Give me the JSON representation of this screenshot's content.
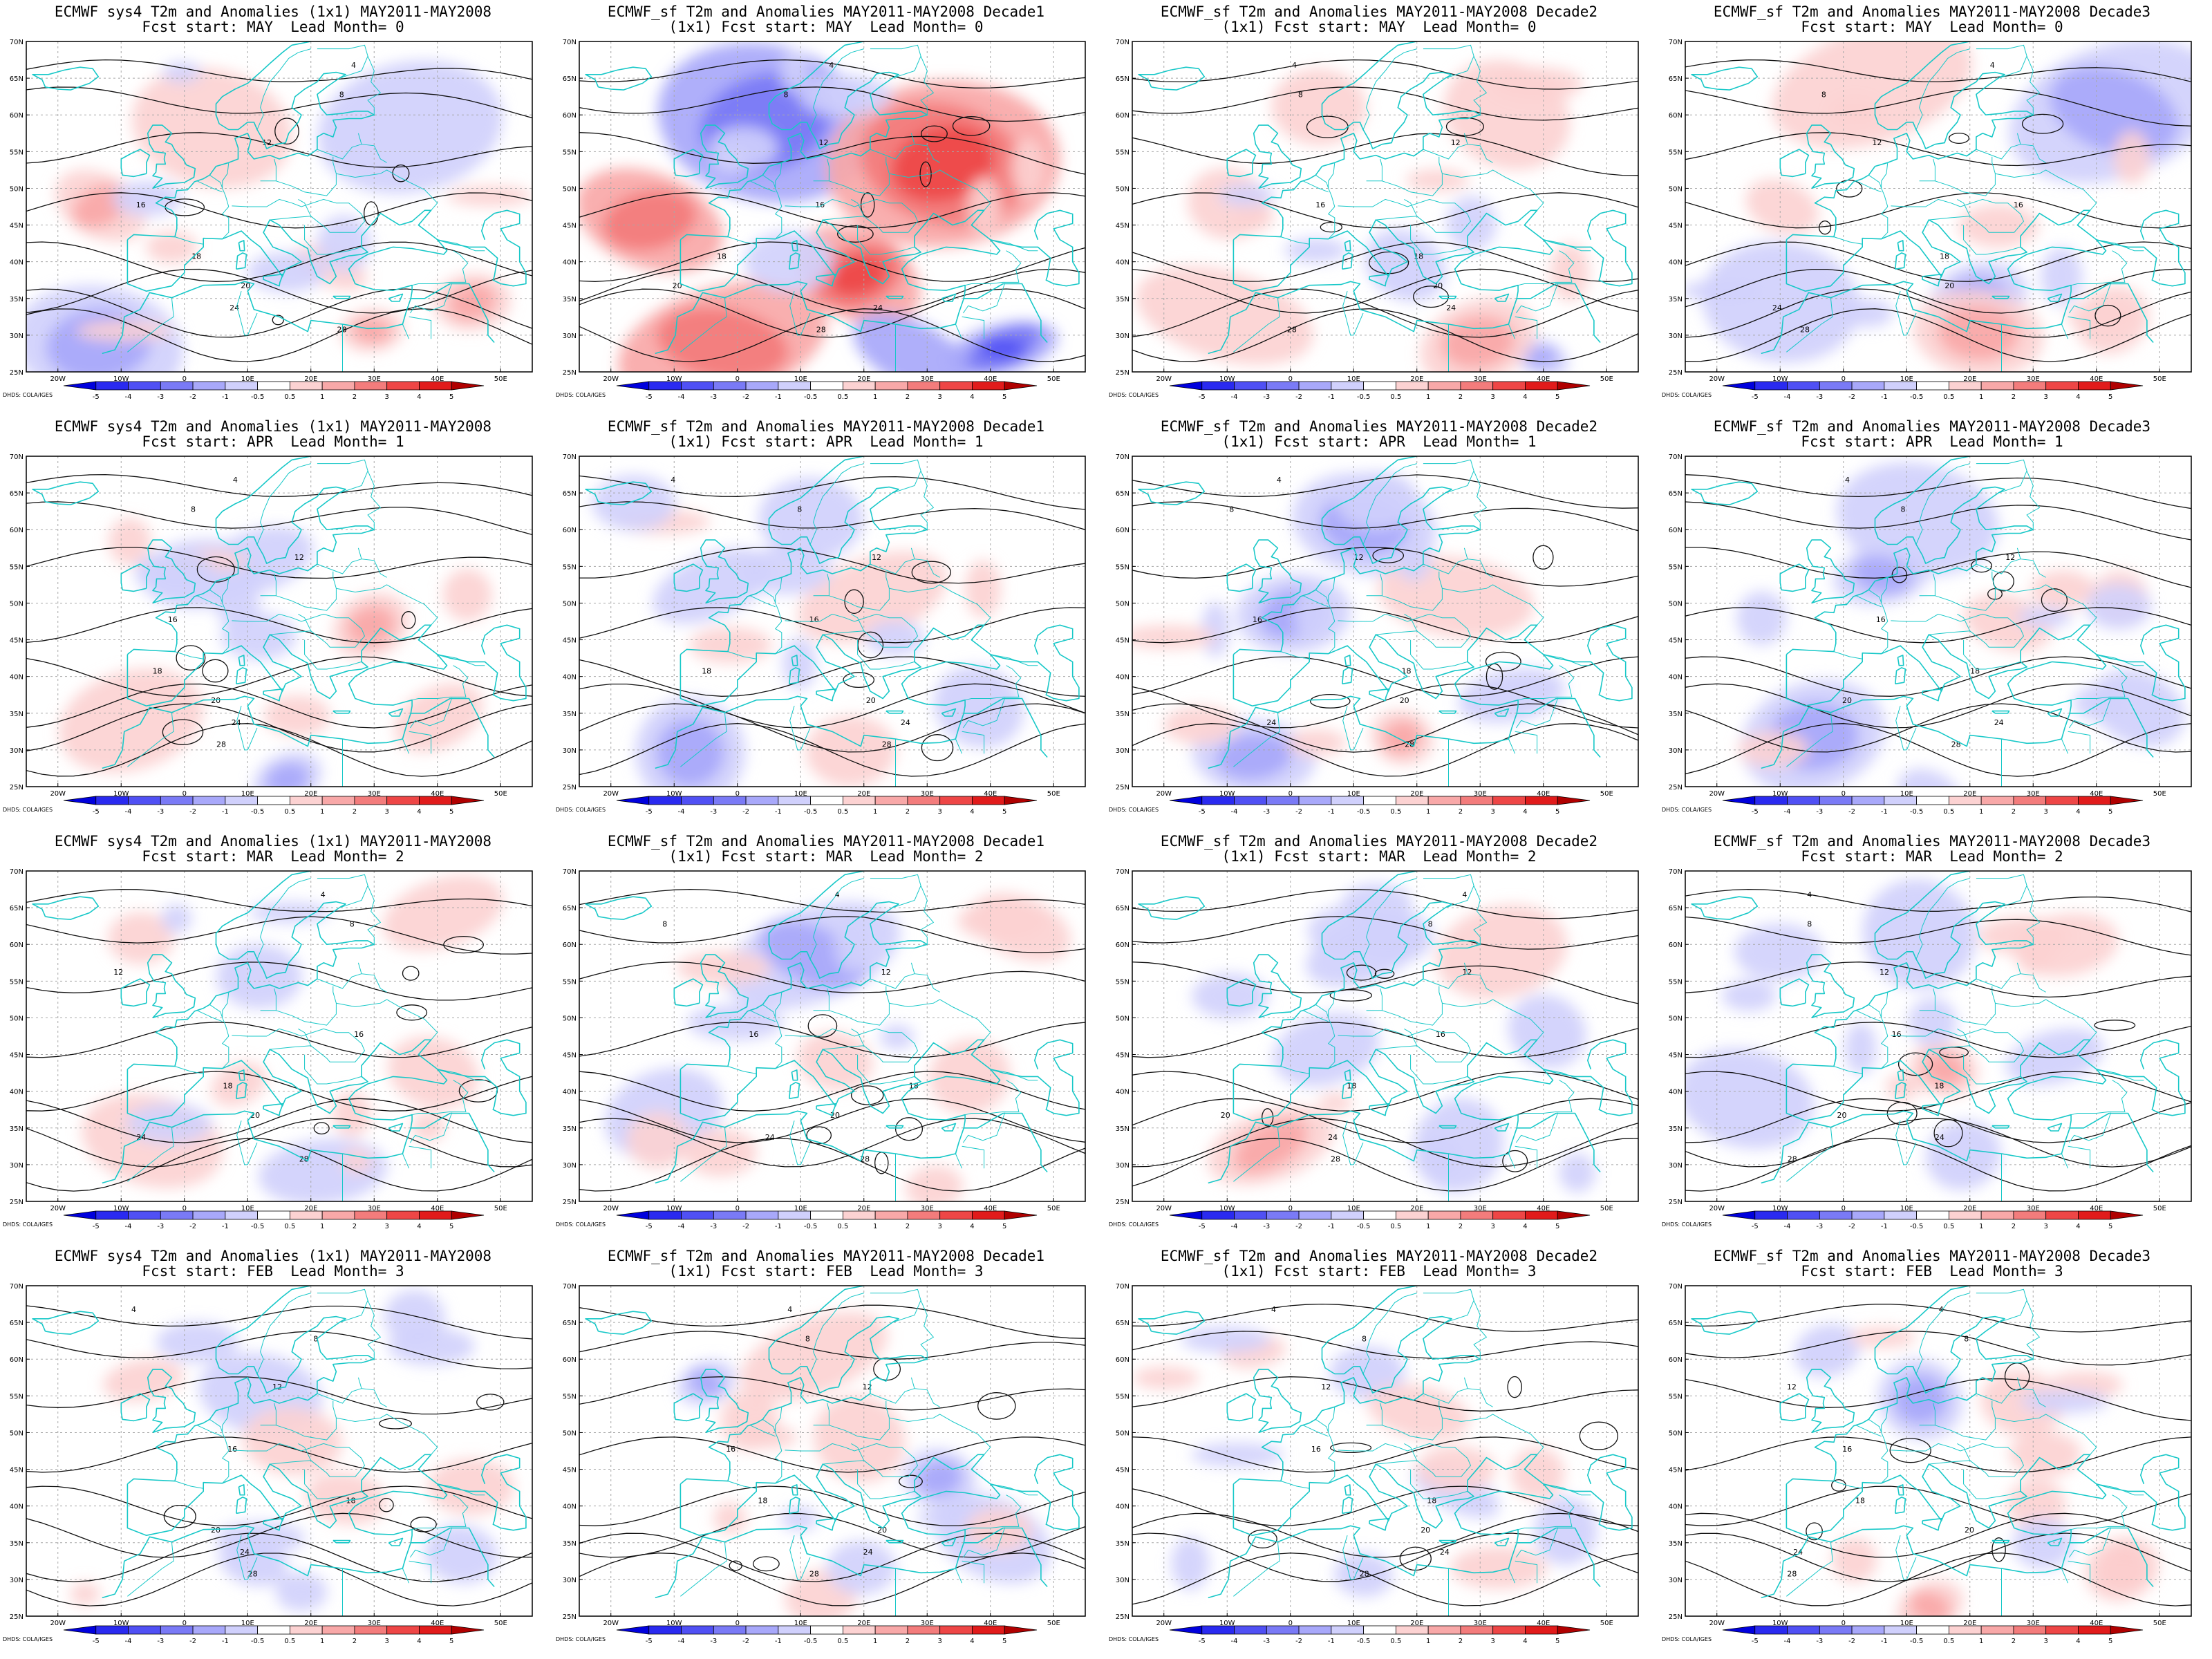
{
  "figure": {
    "colorbar_ticks": [
      "-5",
      "-4",
      "-3",
      "-2",
      "-1",
      "-0.5",
      "0.5",
      "1",
      "2",
      "3",
      "4",
      "5"
    ],
    "colorbar_colors": [
      "#0000dd",
      "#2a2af0",
      "#5050f4",
      "#7a7af6",
      "#a8a8fa",
      "#d0d0fc",
      "#ffffff",
      "#fcd2d2",
      "#f8a8a8",
      "#f37c7c",
      "#ee4646",
      "#e11b1b",
      "#b00000"
    ],
    "credit": "DHDS: COLA/IGES",
    "lat_labels": [
      "70N",
      "65N",
      "60N",
      "55N",
      "50N",
      "45N",
      "40N",
      "35N",
      "30N",
      "25N"
    ],
    "lon_labels": [
      "20W",
      "10W",
      "0",
      "10E",
      "20E",
      "30E",
      "40E",
      "50E"
    ],
    "contour_labels": [
      "4",
      "8",
      "12",
      "16",
      "18",
      "20",
      "24",
      "28"
    ],
    "coast_color": "#18c8c8"
  },
  "panels": [
    {
      "title1": "ECMWF sys4 T2m and Anomalies (1x1) MAY2011-MAY2008",
      "title2": "Fcst start: MAY  Lead Month= 0",
      "row": 0,
      "col": 0,
      "seed": 11,
      "strength": 0.8
    },
    {
      "title1": "ECMWF_sf T2m and Anomalies MAY2011-MAY2008 Decade1",
      "title2": "(1x1) Fcst start: MAY  Lead Month= 0",
      "row": 0,
      "col": 1,
      "seed": 23,
      "strength": 1.4
    },
    {
      "title1": "ECMWF_sf T2m and Anomalies MAY2011-MAY2008 Decade2",
      "title2": "(1x1) Fcst start: MAY  Lead Month= 0",
      "row": 0,
      "col": 2,
      "seed": 37,
      "strength": 0.7
    },
    {
      "title1": "ECMWF_sf T2m and Anomalies MAY2011-MAY2008 Decade3",
      "title2": "Fcst start: MAY  Lead Month= 0",
      "row": 0,
      "col": 3,
      "seed": 41,
      "strength": 0.7
    },
    {
      "title1": "ECMWF sys4 T2m and Anomalies (1x1) MAY2011-MAY2008",
      "title2": "Fcst start: APR  Lead Month= 1",
      "row": 1,
      "col": 0,
      "seed": 53,
      "strength": 0.6
    },
    {
      "title1": "ECMWF_sf T2m and Anomalies MAY2011-MAY2008 Decade1",
      "title2": "(1x1) Fcst start: APR  Lead Month= 1",
      "row": 1,
      "col": 1,
      "seed": 61,
      "strength": 0.6
    },
    {
      "title1": "ECMWF_sf T2m and Anomalies MAY2011-MAY2008 Decade2",
      "title2": "(1x1) Fcst start: APR  Lead Month= 1",
      "row": 1,
      "col": 2,
      "seed": 71,
      "strength": 0.7
    },
    {
      "title1": "ECMWF_sf T2m and Anomalies MAY2011-MAY2008 Decade3",
      "title2": "Fcst start: APR  Lead Month= 1",
      "row": 1,
      "col": 3,
      "seed": 83,
      "strength": 0.7
    },
    {
      "title1": "ECMWF sys4 T2m and Anomalies (1x1) MAY2011-MAY2008",
      "title2": "Fcst start: MAR  Lead Month= 2",
      "row": 2,
      "col": 0,
      "seed": 97,
      "strength": 0.6
    },
    {
      "title1": "ECMWF_sf T2m and Anomalies MAY2011-MAY2008 Decade1",
      "title2": "(1x1) Fcst start: MAR  Lead Month= 2",
      "row": 2,
      "col": 1,
      "seed": 101,
      "strength": 0.6
    },
    {
      "title1": "ECMWF_sf T2m and Anomalies MAY2011-MAY2008 Decade2",
      "title2": "(1x1) Fcst start: MAR  Lead Month= 2",
      "row": 2,
      "col": 2,
      "seed": 113,
      "strength": 0.7
    },
    {
      "title1": "ECMWF_sf T2m and Anomalies MAY2011-MAY2008 Decade3",
      "title2": "Fcst start: MAR  Lead Month= 2",
      "row": 2,
      "col": 3,
      "seed": 127,
      "strength": 0.6
    },
    {
      "title1": "ECMWF sys4 T2m and Anomalies (1x1) MAY2011-MAY2008",
      "title2": "Fcst start: FEB  Lead Month= 3",
      "row": 3,
      "col": 0,
      "seed": 131,
      "strength": 0.5
    },
    {
      "title1": "ECMWF_sf T2m and Anomalies MAY2011-MAY2008 Decade1",
      "title2": "(1x1) Fcst start: FEB  Lead Month= 3",
      "row": 3,
      "col": 1,
      "seed": 149,
      "strength": 0.7
    },
    {
      "title1": "ECMWF_sf T2m and Anomalies MAY2011-MAY2008 Decade2",
      "title2": "(1x1) Fcst start: FEB  Lead Month= 3",
      "row": 3,
      "col": 2,
      "seed": 157,
      "strength": 0.5
    },
    {
      "title1": "ECMWF_sf T2m and Anomalies MAY2011-MAY2008 Decade3",
      "title2": "Fcst start: FEB  Lead Month= 3",
      "row": 3,
      "col": 3,
      "seed": 163,
      "strength": 0.7
    }
  ]
}
